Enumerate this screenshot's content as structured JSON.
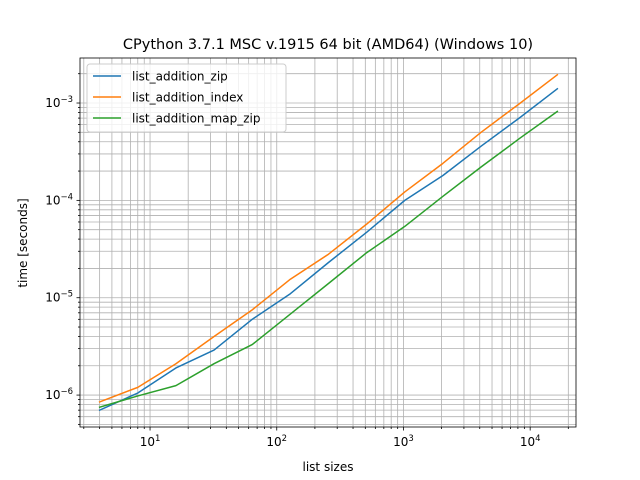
{
  "chart_data": {
    "type": "line",
    "title": "CPython 3.7.1 MSC v.1915 64 bit (AMD64) (Windows 10)",
    "xlabel": "list sizes",
    "ylabel": "time [seconds]",
    "xscale": "log",
    "yscale": "log",
    "xlim": [
      2.8,
      23000
    ],
    "ylim": [
      4.7e-07,
      0.0029
    ],
    "grid": "major and minor",
    "legend_position": "upper left",
    "x": [
      4,
      8,
      16,
      32,
      64,
      128,
      256,
      512,
      1024,
      2048,
      4096,
      8192,
      16384
    ],
    "x_ticks": [
      {
        "value": 10,
        "base": "10",
        "exp": "1"
      },
      {
        "value": 100,
        "base": "10",
        "exp": "2"
      },
      {
        "value": 1000,
        "base": "10",
        "exp": "3"
      },
      {
        "value": 10000,
        "base": "10",
        "exp": "4"
      }
    ],
    "y_ticks": [
      {
        "value": 1e-06,
        "base": "10",
        "exp": "−6"
      },
      {
        "value": 1e-05,
        "base": "10",
        "exp": "−5"
      },
      {
        "value": 0.0001,
        "base": "10",
        "exp": "−4"
      },
      {
        "value": 0.001,
        "base": "10",
        "exp": "−3"
      }
    ],
    "series": [
      {
        "name": "list_addition_zip",
        "color": "#1f77b4",
        "values": [
          7e-07,
          1.05e-06,
          1.9e-06,
          2.9e-06,
          6e-06,
          1.1e-05,
          2.3e-05,
          4.7e-05,
          0.0001,
          0.00018,
          0.00036,
          0.0007,
          0.0014
        ]
      },
      {
        "name": "list_addition_index",
        "color": "#ff7f0e",
        "values": [
          8.5e-07,
          1.2e-06,
          2.1e-06,
          4e-06,
          7.5e-06,
          1.55e-05,
          2.8e-05,
          5.7e-05,
          0.000122,
          0.00024,
          0.0005,
          0.00098,
          0.00195
        ]
      },
      {
        "name": "list_addition_map_zip",
        "color": "#2ca02c",
        "values": [
          7.5e-07,
          9.8e-07,
          1.25e-06,
          2.1e-06,
          3.3e-06,
          6.8e-06,
          1.4e-05,
          2.9e-05,
          5.4e-05,
          0.00011,
          0.00022,
          0.00043,
          0.00082
        ]
      }
    ]
  }
}
